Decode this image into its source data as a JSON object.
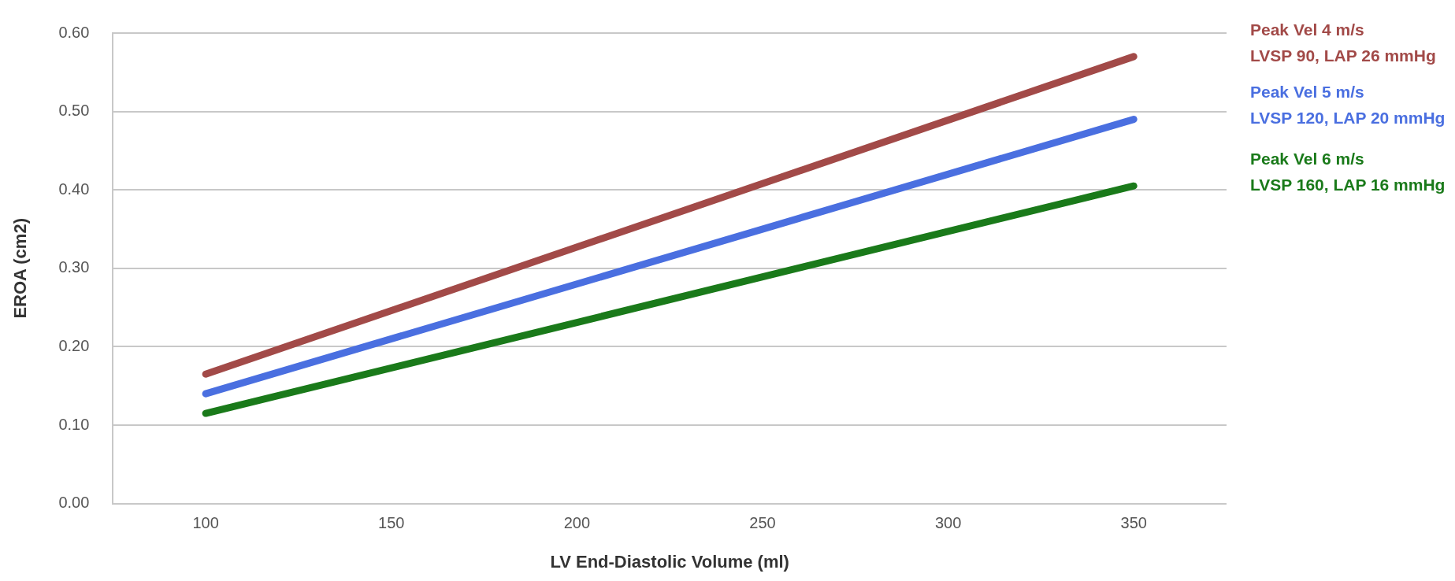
{
  "chart_data": {
    "type": "line",
    "xlabel": "LV End-Diastolic Volume (ml)",
    "ylabel": "EROA (cm2)",
    "x": [
      100,
      350
    ],
    "series": [
      {
        "name": "Peak Vel 4 m/s\nLVSP 90, LAP 26 mmHg",
        "color": "#a24a48",
        "values": [
          0.165,
          0.57
        ]
      },
      {
        "name": "Peak Vel 5 m/s\nLVSP 120, LAP 20 mmHg",
        "color": "#4a6fe0",
        "values": [
          0.14,
          0.49
        ]
      },
      {
        "name": "Peak Vel 6 m/s\nLVSP 160, LAP 16 mmHg",
        "color": "#1a7a1a",
        "values": [
          0.115,
          0.405
        ]
      }
    ],
    "xlim": [
      75,
      375
    ],
    "xticks": [
      100,
      150,
      200,
      250,
      300,
      350
    ],
    "ylim": [
      0,
      0.6
    ],
    "yticks": [
      {
        "value": 0,
        "label": "0.00"
      },
      {
        "value": 0.1,
        "label": "0.10"
      },
      {
        "value": 0.2,
        "label": "0.20"
      },
      {
        "value": 0.3,
        "label": "0.30"
      },
      {
        "value": 0.4,
        "label": "0.40"
      },
      {
        "value": 0.5,
        "label": "0.50"
      },
      {
        "value": 0.6,
        "label": "0.60"
      }
    ],
    "grid": "y",
    "legend": false,
    "marker": "none",
    "line_style": "solid"
  }
}
